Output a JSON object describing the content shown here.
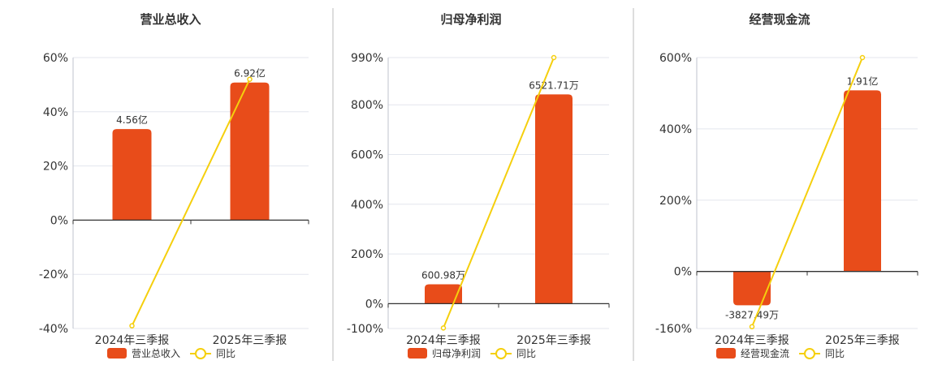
{
  "colors": {
    "bar": "#e84c1a",
    "line": "#f5cf0d",
    "grid": "#e3e6ee",
    "axis": "#333333",
    "divider": "#bbbbbb"
  },
  "legend_line_label": "同比",
  "chart_data": [
    {
      "type": "bar",
      "title": "营业总收入",
      "categories": [
        "2024年三季报",
        "2025年三季报"
      ],
      "ylim": [
        -40,
        60
      ],
      "yticks": [
        -40,
        -20,
        0,
        20,
        40,
        60
      ],
      "ytick_labels": [
        "-40%",
        "-20%",
        "0%",
        "20%",
        "40%",
        "60%"
      ],
      "series": [
        {
          "name": "营业总收入",
          "kind": "bar",
          "values": [
            33.6,
            50.8
          ],
          "labels": [
            "4.56亿",
            "6.92亿"
          ]
        },
        {
          "name": "同比",
          "kind": "line",
          "values": [
            -39.0,
            52.0
          ]
        }
      ],
      "legend": "bottom-center",
      "grid": true
    },
    {
      "type": "bar",
      "title": "归母净利润",
      "categories": [
        "2024年三季报",
        "2025年三季报"
      ],
      "ylim": [
        -100,
        990
      ],
      "yticks": [
        -100,
        0,
        200,
        400,
        600,
        800,
        990
      ],
      "ytick_labels": [
        "-100%",
        "0%",
        "200%",
        "400%",
        "600%",
        "800%",
        "990%"
      ],
      "series": [
        {
          "name": "归母净利润",
          "kind": "bar",
          "values": [
            78,
            842
          ],
          "labels": [
            "600.98万",
            "6521.71万"
          ]
        },
        {
          "name": "同比",
          "kind": "line",
          "values": [
            -98,
            990
          ]
        }
      ],
      "legend": "bottom-center",
      "grid": true
    },
    {
      "type": "bar",
      "title": "经营现金流",
      "categories": [
        "2024年三季报",
        "2025年三季报"
      ],
      "ylim": [
        -160,
        600
      ],
      "yticks": [
        -160,
        0,
        200,
        400,
        600
      ],
      "ytick_labels": [
        "-160%",
        "0%",
        "200%",
        "400%",
        "600%"
      ],
      "series": [
        {
          "name": "经营现金流",
          "kind": "bar",
          "values": [
            -95,
            508
          ],
          "labels": [
            "-3827.49万",
            "1.91亿"
          ]
        },
        {
          "name": "同比",
          "kind": "line",
          "values": [
            -155,
            600
          ]
        }
      ],
      "legend": "bottom-center",
      "grid": true
    }
  ]
}
